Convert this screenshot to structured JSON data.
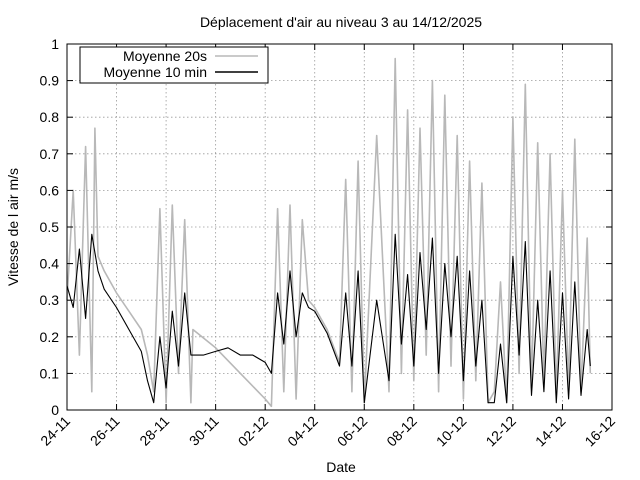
{
  "chart_data": {
    "type": "line",
    "title": "Déplacement d'air au niveau 3 au 14/12/2025",
    "xlabel": "Date",
    "ylabel": "Vitesse de l air m/s",
    "x_ticks": [
      "24-11",
      "26-11",
      "28-11",
      "30-11",
      "02-12",
      "04-12",
      "06-12",
      "08-12",
      "10-12",
      "12-12",
      "14-12",
      "16-12"
    ],
    "xlim": [
      "2025-11-24",
      "2025-12-16"
    ],
    "y_ticks": [
      "0",
      "0.1",
      "0.2",
      "0.3",
      "0.4",
      "0.5",
      "0.6",
      "0.7",
      "0.8",
      "0.9",
      "1"
    ],
    "ylim": [
      0,
      1
    ],
    "grid": true,
    "legend_position": "top-left",
    "series": [
      {
        "name": "Moyenne 20s",
        "color": "#b8b8b8",
        "points": [
          [
            "2025-11-24",
            0.3
          ],
          [
            "2025-11-24T06",
            0.6
          ],
          [
            "2025-11-24T12",
            0.15
          ],
          [
            "2025-11-24T18",
            0.72
          ],
          [
            "2025-11-25",
            0.05
          ],
          [
            "2025-11-25T03",
            0.77
          ],
          [
            "2025-11-25T06",
            0.42
          ],
          [
            "2025-11-25T12",
            0.38
          ],
          [
            "2025-11-26",
            0.32
          ],
          [
            "2025-11-26T12",
            0.27
          ],
          [
            "2025-11-27",
            0.22
          ],
          [
            "2025-11-27T06",
            0.15
          ],
          [
            "2025-11-27T12",
            0.05
          ],
          [
            "2025-11-27T18",
            0.55
          ],
          [
            "2025-11-28",
            0.02
          ],
          [
            "2025-11-28T06",
            0.56
          ],
          [
            "2025-11-28T12",
            0.1
          ],
          [
            "2025-11-28T18",
            0.52
          ],
          [
            "2025-11-29",
            0.02
          ],
          [
            "2025-11-29T02",
            0.22
          ],
          [
            "2025-11-30",
            0.17
          ],
          [
            "2025-12-01",
            0.1
          ],
          [
            "2025-12-02",
            0.03
          ],
          [
            "2025-12-02T06",
            0.01
          ],
          [
            "2025-12-02T12",
            0.55
          ],
          [
            "2025-12-02T18",
            0.05
          ],
          [
            "2025-12-03",
            0.56
          ],
          [
            "2025-12-03T06",
            0.03
          ],
          [
            "2025-12-03T12",
            0.52
          ],
          [
            "2025-12-03T18",
            0.3
          ],
          [
            "2025-12-04",
            0.28
          ],
          [
            "2025-12-04T12",
            0.22
          ],
          [
            "2025-12-05",
            0.13
          ],
          [
            "2025-12-05T06",
            0.63
          ],
          [
            "2025-12-05T12",
            0.05
          ],
          [
            "2025-12-05T18",
            0.68
          ],
          [
            "2025-12-06",
            0.02
          ],
          [
            "2025-12-06T12",
            0.75
          ],
          [
            "2025-12-07",
            0.05
          ],
          [
            "2025-12-07T06",
            0.96
          ],
          [
            "2025-12-07T12",
            0.1
          ],
          [
            "2025-12-07T18",
            0.82
          ],
          [
            "2025-12-08",
            0.08
          ],
          [
            "2025-12-08T06",
            0.77
          ],
          [
            "2025-12-08T12",
            0.15
          ],
          [
            "2025-12-08T18",
            0.9
          ],
          [
            "2025-12-09",
            0.05
          ],
          [
            "2025-12-09T06",
            0.86
          ],
          [
            "2025-12-09T12",
            0.12
          ],
          [
            "2025-12-09T18",
            0.75
          ],
          [
            "2025-12-10",
            0.03
          ],
          [
            "2025-12-10T06",
            0.68
          ],
          [
            "2025-12-10T12",
            0.08
          ],
          [
            "2025-12-10T18",
            0.62
          ],
          [
            "2025-12-11",
            0.02
          ],
          [
            "2025-12-11T06",
            0.05
          ],
          [
            "2025-12-11T12",
            0.35
          ],
          [
            "2025-12-11T18",
            0.02
          ],
          [
            "2025-12-12",
            0.8
          ],
          [
            "2025-12-12T06",
            0.1
          ],
          [
            "2025-12-12T12",
            0.89
          ],
          [
            "2025-12-12T18",
            0.06
          ],
          [
            "2025-12-13",
            0.73
          ],
          [
            "2025-12-13T06",
            0.08
          ],
          [
            "2025-12-13T12",
            0.7
          ],
          [
            "2025-12-13T18",
            0.04
          ],
          [
            "2025-12-14",
            0.6
          ],
          [
            "2025-12-14T06",
            0.06
          ],
          [
            "2025-12-14T12",
            0.74
          ],
          [
            "2025-12-14T18",
            0.05
          ],
          [
            "2025-12-15",
            0.47
          ],
          [
            "2025-12-15T03",
            0.1
          ]
        ]
      },
      {
        "name": "Moyenne 10 min",
        "color": "#000000",
        "points": [
          [
            "2025-11-24",
            0.34
          ],
          [
            "2025-11-24T06",
            0.28
          ],
          [
            "2025-11-24T12",
            0.44
          ],
          [
            "2025-11-24T18",
            0.25
          ],
          [
            "2025-11-25",
            0.48
          ],
          [
            "2025-11-25T06",
            0.38
          ],
          [
            "2025-11-25T12",
            0.33
          ],
          [
            "2025-11-26",
            0.28
          ],
          [
            "2025-11-26T12",
            0.22
          ],
          [
            "2025-11-27",
            0.16
          ],
          [
            "2025-11-27T06",
            0.08
          ],
          [
            "2025-11-27T12",
            0.02
          ],
          [
            "2025-11-27T18",
            0.2
          ],
          [
            "2025-11-28",
            0.06
          ],
          [
            "2025-11-28T06",
            0.27
          ],
          [
            "2025-11-28T12",
            0.12
          ],
          [
            "2025-11-28T18",
            0.32
          ],
          [
            "2025-11-29",
            0.15
          ],
          [
            "2025-11-29T12",
            0.15
          ],
          [
            "2025-11-30",
            0.16
          ],
          [
            "2025-11-30T12",
            0.17
          ],
          [
            "2025-12-01",
            0.15
          ],
          [
            "2025-12-01T12",
            0.15
          ],
          [
            "2025-12-02",
            0.13
          ],
          [
            "2025-12-02T06",
            0.1
          ],
          [
            "2025-12-02T12",
            0.32
          ],
          [
            "2025-12-02T18",
            0.18
          ],
          [
            "2025-12-03",
            0.38
          ],
          [
            "2025-12-03T06",
            0.2
          ],
          [
            "2025-12-03T12",
            0.32
          ],
          [
            "2025-12-03T18",
            0.28
          ],
          [
            "2025-12-04",
            0.27
          ],
          [
            "2025-12-04T06",
            0.24
          ],
          [
            "2025-12-04T12",
            0.21
          ],
          [
            "2025-12-05",
            0.12
          ],
          [
            "2025-12-05T06",
            0.32
          ],
          [
            "2025-12-05T12",
            0.12
          ],
          [
            "2025-12-05T18",
            0.38
          ],
          [
            "2025-12-06",
            0.02
          ],
          [
            "2025-12-06T12",
            0.3
          ],
          [
            "2025-12-07",
            0.08
          ],
          [
            "2025-12-07T06",
            0.48
          ],
          [
            "2025-12-07T12",
            0.18
          ],
          [
            "2025-12-07T18",
            0.37
          ],
          [
            "2025-12-08",
            0.12
          ],
          [
            "2025-12-08T06",
            0.43
          ],
          [
            "2025-12-08T12",
            0.22
          ],
          [
            "2025-12-08T18",
            0.47
          ],
          [
            "2025-12-09",
            0.1
          ],
          [
            "2025-12-09T06",
            0.4
          ],
          [
            "2025-12-09T12",
            0.2
          ],
          [
            "2025-12-09T18",
            0.42
          ],
          [
            "2025-12-10",
            0.08
          ],
          [
            "2025-12-10T06",
            0.38
          ],
          [
            "2025-12-10T12",
            0.12
          ],
          [
            "2025-12-10T18",
            0.3
          ],
          [
            "2025-12-11",
            0.02
          ],
          [
            "2025-12-11T06",
            0.02
          ],
          [
            "2025-12-11T12",
            0.18
          ],
          [
            "2025-12-11T18",
            0.02
          ],
          [
            "2025-12-12",
            0.42
          ],
          [
            "2025-12-12T06",
            0.15
          ],
          [
            "2025-12-12T12",
            0.46
          ],
          [
            "2025-12-12T18",
            0.04
          ],
          [
            "2025-12-13",
            0.3
          ],
          [
            "2025-12-13T06",
            0.05
          ],
          [
            "2025-12-13T12",
            0.38
          ],
          [
            "2025-12-13T18",
            0.02
          ],
          [
            "2025-12-14",
            0.32
          ],
          [
            "2025-12-14T06",
            0.03
          ],
          [
            "2025-12-14T12",
            0.35
          ],
          [
            "2025-12-14T18",
            0.04
          ],
          [
            "2025-12-15",
            0.22
          ],
          [
            "2025-12-15T03",
            0.12
          ]
        ]
      }
    ]
  }
}
